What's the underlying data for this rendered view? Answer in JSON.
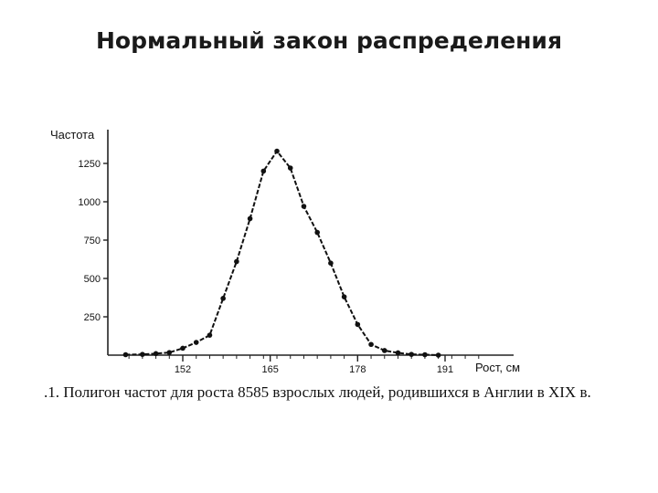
{
  "slide": {
    "title": "Нормальный закон распределения"
  },
  "caption": ".1. Полигон частот для роста 8585 взрослых людей, родившихся в Англии в XIX в.",
  "chart_data": {
    "type": "line",
    "title": "",
    "ylabel": "Частота",
    "xlabel": "Рост, см",
    "x_ticks": [
      152,
      165,
      178,
      191
    ],
    "y_ticks": [
      250,
      500,
      750,
      1000,
      1250
    ],
    "xlim": [
      144,
      197
    ],
    "ylim": [
      0,
      1350
    ],
    "grid": false,
    "series": [
      {
        "x": [
          143.5,
          146,
          148,
          150,
          152,
          154,
          156,
          158,
          160,
          162,
          164,
          166,
          168,
          170,
          172,
          174,
          176,
          178,
          180,
          182,
          184,
          186,
          188,
          190
        ],
        "values": [
          3,
          5,
          10,
          17,
          45,
          83,
          130,
          370,
          610,
          890,
          1200,
          1330,
          1220,
          970,
          800,
          600,
          380,
          200,
          70,
          30,
          15,
          5,
          3,
          0
        ]
      }
    ]
  }
}
